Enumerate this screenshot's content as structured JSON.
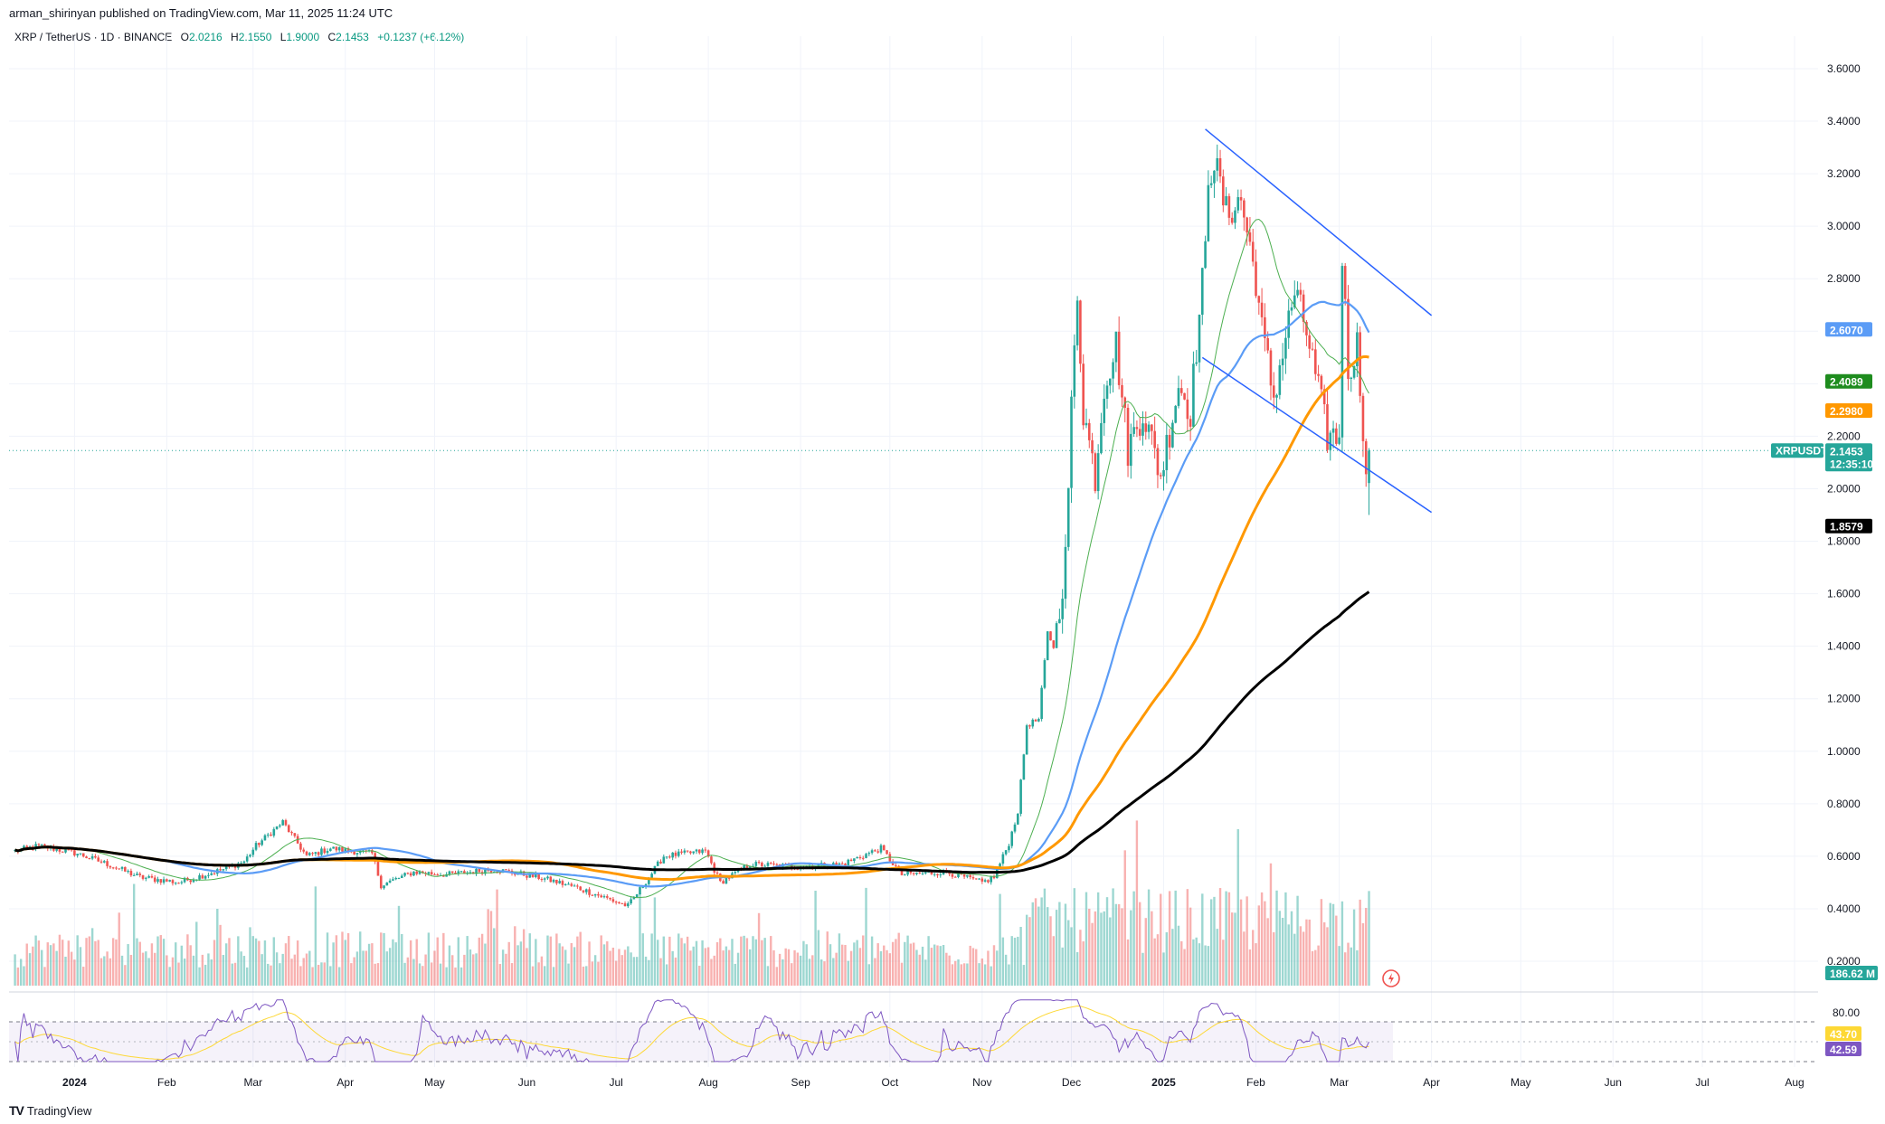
{
  "header": {
    "publisher": "arman_shirinyan published on TradingView.com, Mar 11, 2025 11:24 UTC"
  },
  "legend": {
    "symbol": "XRP / TetherUS · 1D · BINANCE",
    "open_key": "O",
    "open": "2.0216",
    "high_key": "H",
    "high": "2.1550",
    "low_key": "L",
    "low": "1.9000",
    "close_key": "C",
    "close": "2.1453",
    "change": "+0.1237 (+6.12%)"
  },
  "footer": {
    "logo": "TV",
    "brand": "TradingView"
  },
  "colors": {
    "up": "#26a69a",
    "down": "#ef5350",
    "ma_fast": "#4caf50",
    "ma_50": "#5b9cf6",
    "ma_100": "#ff9800",
    "ma_200": "#000000",
    "trendline": "#2962ff",
    "rsi": "#7e57c2",
    "rsi_ma": "#fdd835"
  },
  "chart_data": {
    "type": "candlestick",
    "symbol": "XRPUSDT",
    "timeframe": "1D",
    "ylim": [
      0.1,
      3.75
    ],
    "y_ticks": [
      "0.2000",
      "0.4000",
      "0.6000",
      "0.8000",
      "1.0000",
      "1.2000",
      "1.4000",
      "1.6000",
      "1.8000",
      "2.0000",
      "2.2000",
      "2.4000",
      "2.6000",
      "2.8000",
      "3.0000",
      "3.2000",
      "3.4000",
      "3.6000"
    ],
    "x_ticks": [
      {
        "date": "2024-01-01",
        "label": "2024",
        "bold": true
      },
      {
        "date": "2024-02-01",
        "label": "Feb"
      },
      {
        "date": "2024-03-01",
        "label": "Mar"
      },
      {
        "date": "2024-04-01",
        "label": "Apr"
      },
      {
        "date": "2024-05-01",
        "label": "May"
      },
      {
        "date": "2024-06-01",
        "label": "Jun"
      },
      {
        "date": "2024-07-01",
        "label": "Jul"
      },
      {
        "date": "2024-08-01",
        "label": "Aug"
      },
      {
        "date": "2024-09-01",
        "label": "Sep"
      },
      {
        "date": "2024-10-01",
        "label": "Oct"
      },
      {
        "date": "2024-11-01",
        "label": "Nov"
      },
      {
        "date": "2024-12-01",
        "label": "Dec"
      },
      {
        "date": "2025-01-01",
        "label": "2025",
        "bold": true
      },
      {
        "date": "2025-02-01",
        "label": "Feb"
      },
      {
        "date": "2025-03-01",
        "label": "Mar"
      },
      {
        "date": "2025-04-01",
        "label": "Apr"
      },
      {
        "date": "2025-05-01",
        "label": "May"
      },
      {
        "date": "2025-06-01",
        "label": "Jun"
      },
      {
        "date": "2025-07-01",
        "label": "Jul"
      },
      {
        "date": "2025-08-01",
        "label": "Aug"
      }
    ],
    "close_anchors": [
      [
        "2023-12-12",
        0.62
      ],
      [
        "2023-12-20",
        0.64
      ],
      [
        "2024-01-02",
        0.61
      ],
      [
        "2024-01-12",
        0.57
      ],
      [
        "2024-01-23",
        0.52
      ],
      [
        "2024-02-05",
        0.5
      ],
      [
        "2024-02-20",
        0.55
      ],
      [
        "2024-02-27",
        0.58
      ],
      [
        "2024-03-02",
        0.64
      ],
      [
        "2024-03-06",
        0.68
      ],
      [
        "2024-03-11",
        0.73
      ],
      [
        "2024-03-19",
        0.6
      ],
      [
        "2024-03-27",
        0.63
      ],
      [
        "2024-04-10",
        0.61
      ],
      [
        "2024-04-13",
        0.49
      ],
      [
        "2024-04-24",
        0.54
      ],
      [
        "2024-05-05",
        0.53
      ],
      [
        "2024-05-21",
        0.55
      ],
      [
        "2024-06-05",
        0.52
      ],
      [
        "2024-06-18",
        0.48
      ],
      [
        "2024-07-05",
        0.41
      ],
      [
        "2024-07-12",
        0.52
      ],
      [
        "2024-07-17",
        0.6
      ],
      [
        "2024-07-31",
        0.62
      ],
      [
        "2024-08-05",
        0.5
      ],
      [
        "2024-08-15",
        0.57
      ],
      [
        "2024-08-31",
        0.56
      ],
      [
        "2024-09-15",
        0.57
      ],
      [
        "2024-09-28",
        0.63
      ],
      [
        "2024-10-05",
        0.53
      ],
      [
        "2024-10-20",
        0.54
      ],
      [
        "2024-11-01",
        0.5
      ],
      [
        "2024-11-05",
        0.52
      ],
      [
        "2024-11-10",
        0.65
      ],
      [
        "2024-11-13",
        0.77
      ],
      [
        "2024-11-16",
        1.1
      ],
      [
        "2024-11-20",
        1.12
      ],
      [
        "2024-11-23",
        1.45
      ],
      [
        "2024-11-25",
        1.4
      ],
      [
        "2024-11-29",
        1.73
      ],
      [
        "2024-12-01",
        2.3
      ],
      [
        "2024-12-03",
        2.75
      ],
      [
        "2024-12-05",
        2.3
      ],
      [
        "2024-12-09",
        2.05
      ],
      [
        "2024-12-12",
        2.4
      ],
      [
        "2024-12-16",
        2.55
      ],
      [
        "2024-12-20",
        2.15
      ],
      [
        "2024-12-25",
        2.3
      ],
      [
        "2024-12-31",
        2.05
      ],
      [
        "2025-01-06",
        2.4
      ],
      [
        "2025-01-10",
        2.3
      ],
      [
        "2025-01-15",
        2.9
      ],
      [
        "2025-01-16",
        3.2
      ],
      [
        "2025-01-18",
        3.25
      ],
      [
        "2025-01-22",
        3.05
      ],
      [
        "2025-01-27",
        3.1
      ],
      [
        "2025-02-01",
        2.8
      ],
      [
        "2025-02-03",
        2.6
      ],
      [
        "2025-02-07",
        2.35
      ],
      [
        "2025-02-14",
        2.75
      ],
      [
        "2025-02-18",
        2.6
      ],
      [
        "2025-02-25",
        2.2
      ],
      [
        "2025-03-01",
        2.2
      ],
      [
        "2025-03-02",
        2.9
      ],
      [
        "2025-03-04",
        2.45
      ],
      [
        "2025-03-07",
        2.55
      ],
      [
        "2025-03-09",
        2.25
      ],
      [
        "2025-03-10",
        2.02
      ],
      [
        "2025-03-11",
        2.1453
      ]
    ],
    "moving_averages": [
      {
        "period": 20,
        "color": "#4caf50",
        "last_value": "2.4089"
      },
      {
        "period": 50,
        "color": "#5b9cf6",
        "last_value": "2.6070"
      },
      {
        "period": 100,
        "color": "#ff9800",
        "last_value": "2.2980"
      },
      {
        "period": 200,
        "color": "#000000",
        "last_value": "1.8579"
      }
    ],
    "trendlines": [
      {
        "from": [
          "2025-01-15",
          3.37
        ],
        "to": [
          "2025-04-01",
          2.66
        ]
      },
      {
        "from": [
          "2025-01-14",
          2.5
        ],
        "to": [
          "2025-04-01",
          1.91
        ]
      }
    ],
    "price_tags": [
      {
        "label": "",
        "value": "2.6070",
        "price": 2.607,
        "color": "#5b9cf6"
      },
      {
        "label": "",
        "value": "2.4089",
        "price": 2.409,
        "color": "#1e8c1e"
      },
      {
        "label": "",
        "value": "2.2980",
        "price": 2.298,
        "color": "#ff9800"
      },
      {
        "label": "XRPUSDT",
        "value": "2.1453",
        "countdown": "12:35:10",
        "price": 2.1453,
        "color": "#26a69a"
      },
      {
        "label": "",
        "value": "1.8579",
        "price": 1.858,
        "color": "#000000"
      }
    ],
    "volume": {
      "last_label": "186.62 M"
    },
    "rsi": {
      "levels": [
        "80.00"
      ],
      "value": "42.59",
      "ma_value": "43.70"
    }
  }
}
